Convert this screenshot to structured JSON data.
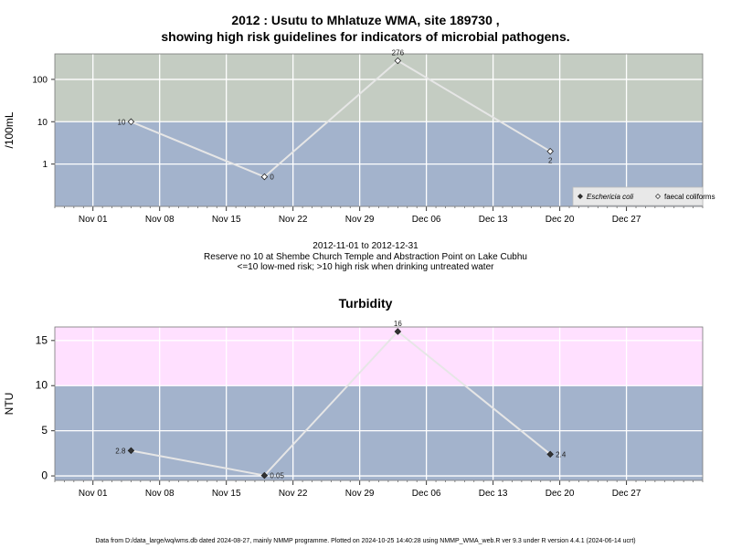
{
  "chart_data": [
    {
      "type": "line",
      "title_line1": "2012 : Usutu to Mhlatuze WMA, site 189730 ,",
      "title_line2": "showing high risk guidelines for indicators of microbial pathogens.",
      "ylabel": "/100mL",
      "yscale": "log",
      "ytick_labels": [
        "1",
        "10",
        "100"
      ],
      "yticks": [
        1,
        10,
        100
      ],
      "ylim": [
        0.1,
        400
      ],
      "x_range": [
        "2012-10-28",
        "2013-01-04"
      ],
      "xtick_dates": [
        "2012-11-01",
        "2012-11-08",
        "2012-11-15",
        "2012-11-22",
        "2012-11-29",
        "2012-12-06",
        "2012-12-13",
        "2012-12-20",
        "2012-12-27"
      ],
      "xtick_labels": [
        "Nov 01",
        "Nov 08",
        "Nov 15",
        "Nov 22",
        "Nov 29",
        "Dec 06",
        "Dec 13",
        "Dec 20",
        "Dec 27"
      ],
      "bands": [
        {
          "from": 10,
          "to": 400,
          "color": "#c4ccc2"
        },
        {
          "from": 0.1,
          "to": 10,
          "color": "#a3b3cc"
        }
      ],
      "grid": true,
      "series": [
        {
          "name": "faecal coliforms",
          "marker": "open-diamond",
          "x": [
            "2012-11-05",
            "2012-11-19",
            "2012-12-03",
            "2012-12-19"
          ],
          "values": [
            10,
            0.5,
            276,
            2
          ],
          "labels": [
            "10",
            "0",
            "276",
            "2"
          ],
          "label_pos": [
            "left",
            "right",
            "top",
            "bottom"
          ]
        }
      ],
      "legend": {
        "position": "bottom-right",
        "entries": [
          {
            "label": "Eschericia coli",
            "marker": "filled-diamond",
            "italic": true
          },
          {
            "label": "faecal coliforms",
            "marker": "open-diamond",
            "italic": false
          }
        ]
      }
    },
    {
      "type": "line",
      "title": "Turbidity",
      "ylabel": "NTU",
      "ytick_labels": [
        "0",
        "5",
        "10",
        "15"
      ],
      "yticks": [
        0,
        5,
        10,
        15
      ],
      "ylim": [
        -0.5,
        16.5
      ],
      "x_range": [
        "2012-10-28",
        "2013-01-04"
      ],
      "xtick_dates": [
        "2012-11-01",
        "2012-11-08",
        "2012-11-15",
        "2012-11-22",
        "2012-11-29",
        "2012-12-06",
        "2012-12-13",
        "2012-12-20",
        "2012-12-27"
      ],
      "xtick_labels": [
        "Nov 01",
        "Nov 08",
        "Nov 15",
        "Nov 22",
        "Nov 29",
        "Dec 06",
        "Dec 13",
        "Dec 20",
        "Dec 27"
      ],
      "bands": [
        {
          "from": 10,
          "to": 16.5,
          "color": "#ffe0ff"
        },
        {
          "from": -0.5,
          "to": 10,
          "color": "#a3b3cc"
        }
      ],
      "grid": true,
      "series": [
        {
          "marker": "filled-diamond",
          "x": [
            "2012-11-05",
            "2012-11-19",
            "2012-12-03",
            "2012-12-19"
          ],
          "values": [
            2.8,
            0.05,
            16,
            2.4
          ],
          "labels": [
            "2.8",
            "0.05",
            "16",
            "2.4"
          ],
          "label_pos": [
            "left",
            "right",
            "top",
            "right"
          ]
        }
      ]
    }
  ],
  "info": {
    "line1": "2012-11-01 to 2012-12-31",
    "line2": "Reserve no 10 at Shembe Church Temple and Abstraction Point on Lake Cubhu",
    "line3": "<=10 low-med risk; >10 high risk when drinking untreated water"
  },
  "footer": "Data from D:/data_large/wq/wms.db dated 2024-08-27, mainly NMMP programme. Plotted on 2024-10-25 14:40:28 using NMMP_WMA_web.R ver 9.3 under R version 4.4.1 (2024-06-14 ucrt)",
  "colors": {
    "line": "#e6e6e6",
    "grid": "#ffffff",
    "border": "#777777"
  }
}
